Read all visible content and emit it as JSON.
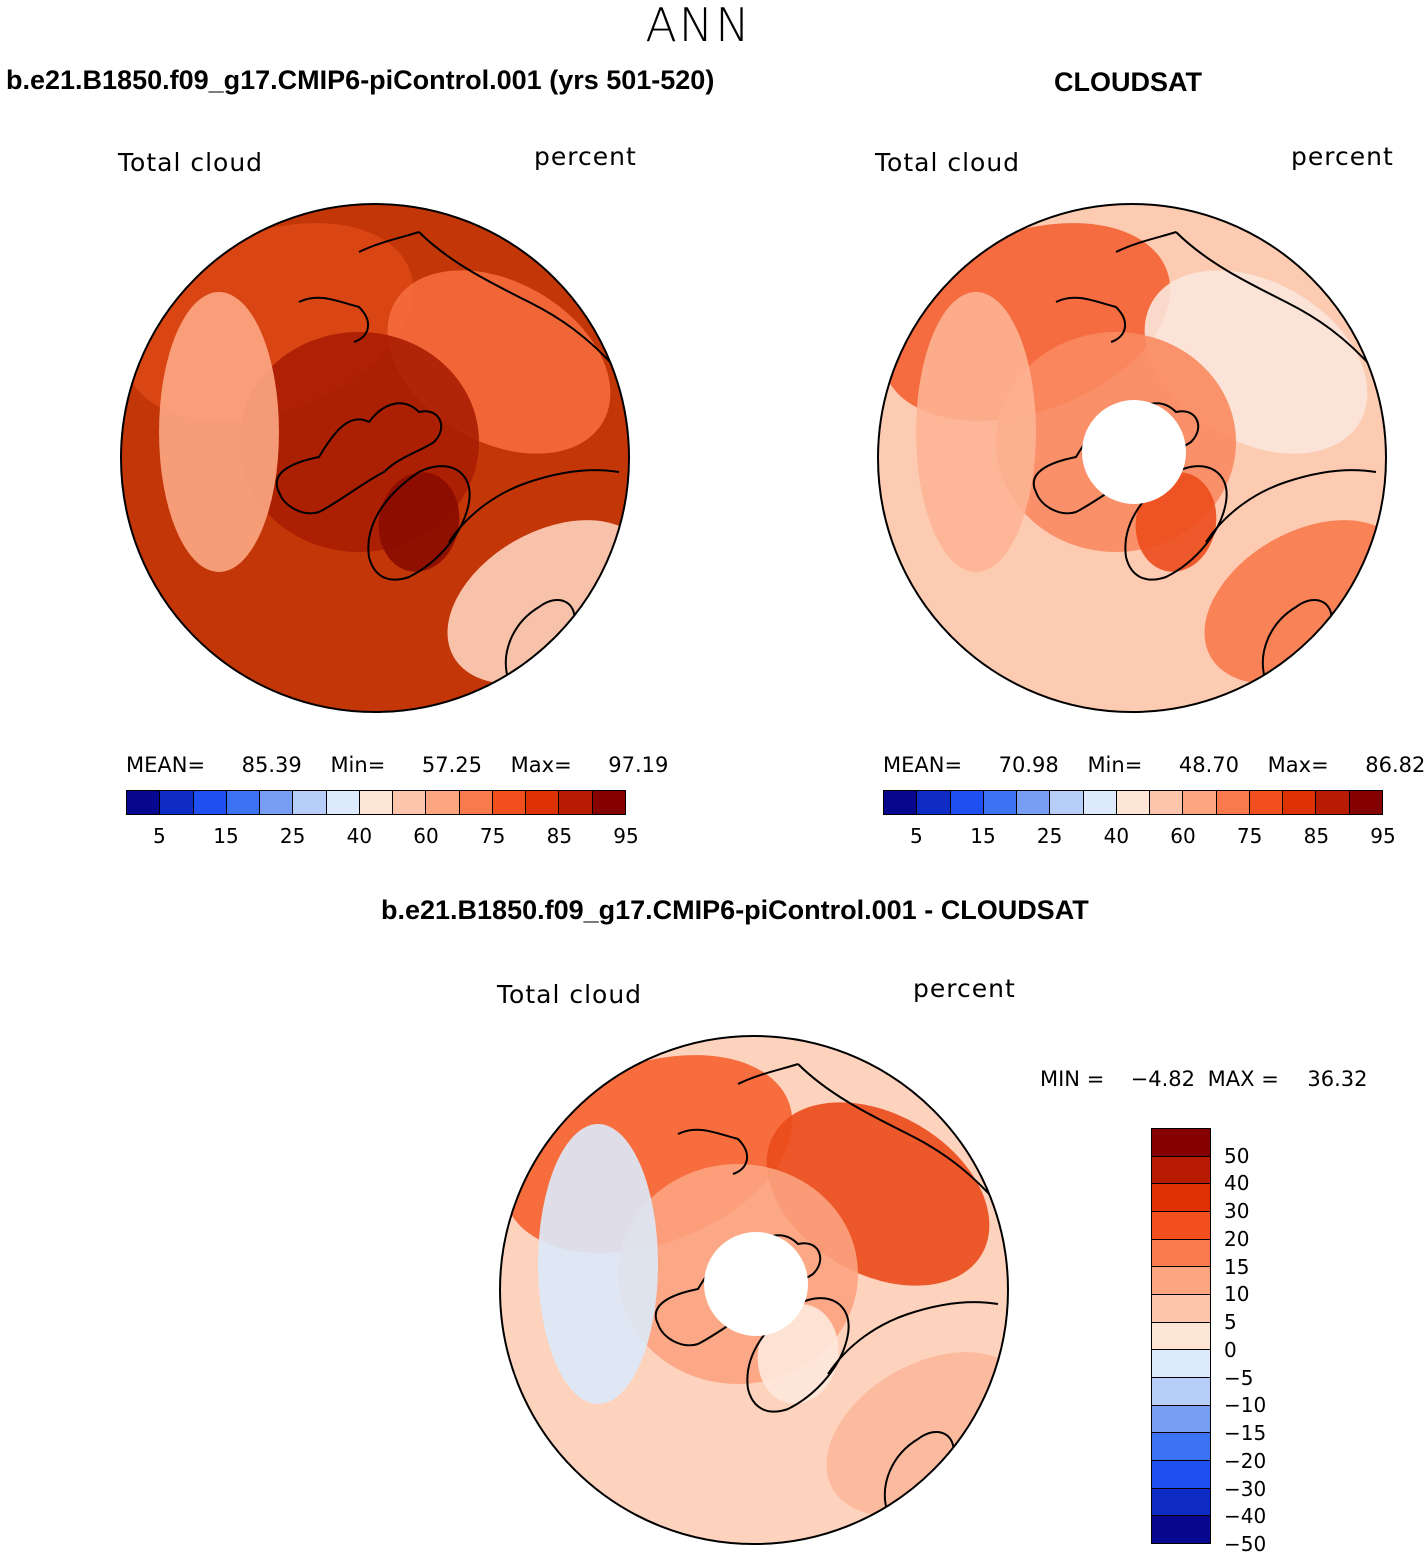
{
  "season": "ANN",
  "panels": [
    {
      "title": "b.e21.B1850.f09_g17.CMIP6-piControl.001 (yrs 501-520)",
      "variable": "Total cloud",
      "units": "percent",
      "stats": {
        "mean_label": "MEAN=",
        "mean": "85.39",
        "min_label": "Min=",
        "min": "57.25",
        "max_label": "Max=",
        "max": "97.19"
      },
      "palette": [
        "#08088e",
        "#0e2bc4",
        "#1f4ff0",
        "#3d72f2",
        "#789ef4",
        "#b7cff8",
        "#dceafb",
        "#fee6d6",
        "#fdc6ac",
        "#fca57e",
        "#f97a4d",
        "#f1501e",
        "#dd3104",
        "#b71c02",
        "#850000"
      ],
      "ticks": [
        "5",
        "15",
        "25",
        "40",
        "60",
        "75",
        "85",
        "95"
      ],
      "fill": {
        "background": "#c33607",
        "patches": [
          "#dd4716",
          "#f56b3c",
          "#a81d03",
          "#8a0c00",
          "#fca784",
          "#fdd2bb"
        ]
      }
    },
    {
      "title": "CLOUDSAT",
      "variable": "Total cloud",
      "units": "percent",
      "stats": {
        "mean_label": "MEAN=",
        "mean": "70.98",
        "min_label": "Min=",
        "min": "48.70",
        "max_label": "Max=",
        "max": "86.82"
      },
      "palette": [
        "#08088e",
        "#0e2bc4",
        "#1f4ff0",
        "#3d72f2",
        "#789ef4",
        "#b7cff8",
        "#dceafb",
        "#fee6d6",
        "#fdc6ac",
        "#fca57e",
        "#f97a4d",
        "#f1501e",
        "#dd3104",
        "#b71c02",
        "#850000"
      ],
      "ticks": [
        "5",
        "15",
        "25",
        "40",
        "60",
        "75",
        "85",
        "95"
      ],
      "fill": {
        "background": "#fdcbb2",
        "patches": [
          "#f36233",
          "#fbe6da",
          "#f98960",
          "#ec4c1c",
          "#fdb494",
          "#f87a4d"
        ]
      }
    }
  ],
  "diff": {
    "title": "b.e21.B1850.f09_g17.CMIP6-piControl.001 - CLOUDSAT",
    "variable": "Total cloud",
    "units": "percent",
    "stats": {
      "min_label": "MIN =",
      "min": "−4.82",
      "max_label": "MAX =",
      "max": "36.32"
    },
    "palette": [
      "#850000",
      "#b71c02",
      "#dd3104",
      "#f1501e",
      "#f97a4d",
      "#fca57e",
      "#fdc6ac",
      "#fee6d6",
      "#dceafb",
      "#b7cff8",
      "#789ef4",
      "#3d72f2",
      "#1f4ff0",
      "#0e2bc4",
      "#08088e"
    ],
    "ticks": [
      "50",
      "40",
      "30",
      "20",
      "15",
      "10",
      "5",
      "0",
      "−5",
      "−10",
      "−15",
      "−20",
      "−30",
      "−40",
      "−50"
    ],
    "fill": {
      "background": "#fdd3bd",
      "patches": [
        "#f6622f",
        "#ea4a19",
        "#fca37f",
        "#fee8db",
        "#dbe9fa",
        "#fcb89a"
      ]
    }
  }
}
